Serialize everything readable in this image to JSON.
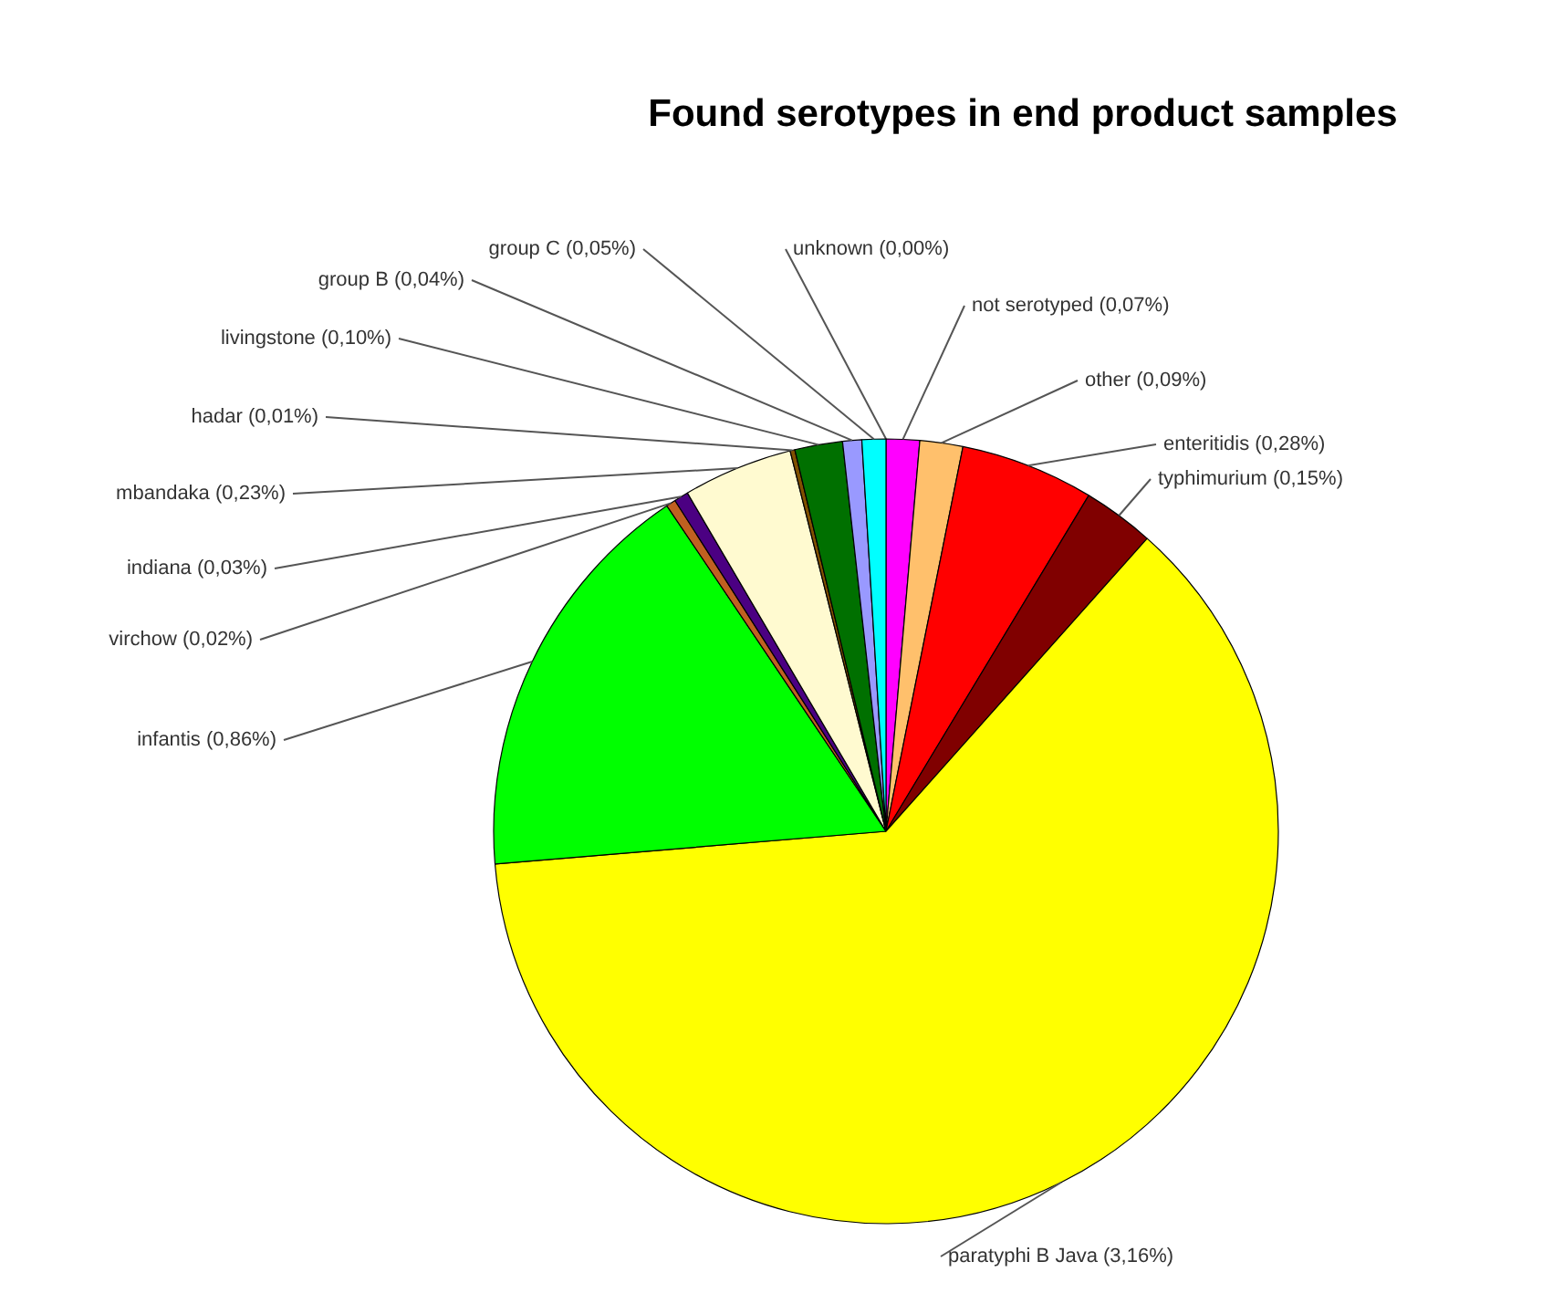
{
  "chart_data": {
    "type": "pie",
    "title": "Found serotypes in end product samples",
    "categories": [
      "unknown",
      "not serotyped",
      "other",
      "enteritidis",
      "typhimurium",
      "paratyphi B Java",
      "infantis",
      "virchow",
      "indiana",
      "mbandaka",
      "hadar",
      "livingstone",
      "group B",
      "group C"
    ],
    "values": [
      0,
      0.07,
      0.09,
      0.28,
      0.15,
      3.16,
      0.86,
      0.02,
      0.03,
      0.23,
      0.01,
      0.1,
      0.04,
      0.05
    ],
    "value_labels": [
      "(0,00%)",
      "(0,07%)",
      "(0,09%)",
      "(0,28%)",
      "(0,15%)",
      "(3,16%)",
      "(0,86%)",
      "(0,02%)",
      "(0,03%)",
      "(0,23%)",
      "(0,01%)",
      "(0,10%)",
      "(0,04%)",
      "(0,05%)"
    ],
    "colors": [
      "#3050ff",
      "#ff00ff",
      "#ffc06c",
      "#ff0000",
      "#800000",
      "#ffff00",
      "#00ff00",
      "#c06020",
      "#4b0082",
      "#fffad0",
      "#805000",
      "#007000",
      "#9999ff",
      "#00ffff"
    ]
  }
}
